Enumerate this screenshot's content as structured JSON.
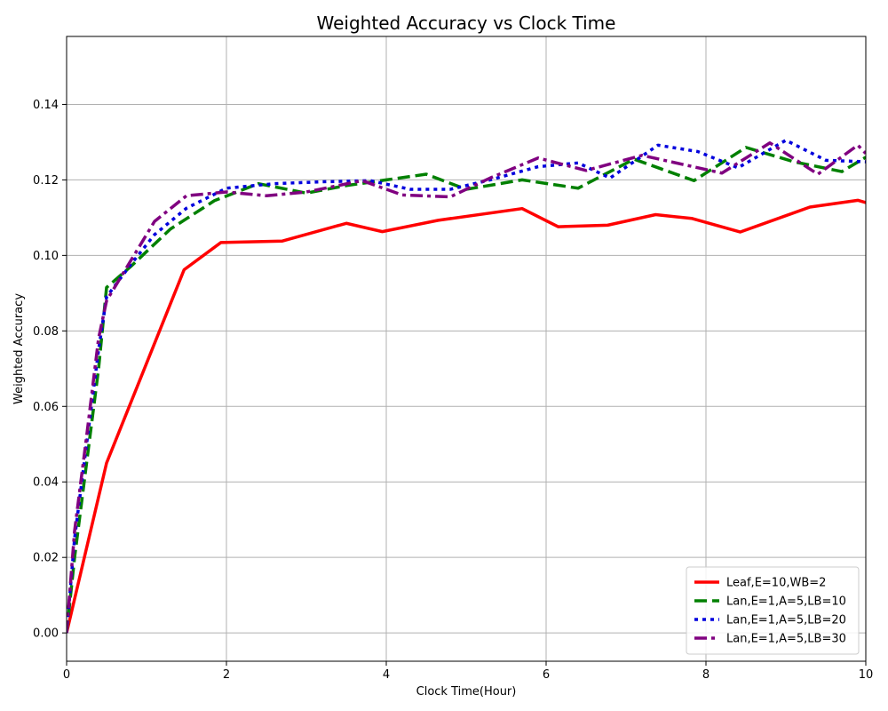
{
  "chart_data": {
    "type": "line",
    "title": "Weighted Accuracy vs Clock Time",
    "xlabel": "Clock Time(Hour)",
    "ylabel": "Weighted Accuracy",
    "xlim": [
      0,
      10
    ],
    "ylim": [
      -0.0075,
      0.158
    ],
    "xticks": [
      0,
      2,
      4,
      6,
      8,
      10
    ],
    "yticks": [
      0.0,
      0.02,
      0.04,
      0.06,
      0.08,
      0.1,
      0.12,
      0.14
    ],
    "xtick_labels": [
      "0",
      "2",
      "4",
      "6",
      "8",
      "10"
    ],
    "ytick_labels": [
      "0.00",
      "0.02",
      "0.04",
      "0.06",
      "0.08",
      "0.10",
      "0.12",
      "0.14"
    ],
    "grid": true,
    "legend_position": "lower-right",
    "series": [
      {
        "name": "Leaf,E=10,WB=2",
        "color": "#ff0000",
        "dash": "solid",
        "x": [
          0,
          0.5,
          1.47,
          1.93,
          2.7,
          3.5,
          3.95,
          4.65,
          5.7,
          6.15,
          6.77,
          7.37,
          7.82,
          8.43,
          9.3,
          9.9,
          10.0
        ],
        "y": [
          0.0,
          0.045,
          0.0962,
          0.1034,
          0.1038,
          0.1085,
          0.1063,
          0.1093,
          0.1124,
          0.1076,
          0.108,
          0.1108,
          0.1098,
          0.1062,
          0.1128,
          0.1146,
          0.114
        ]
      },
      {
        "name": "Lan,E=1,A=5,LB=10",
        "color": "#008000",
        "dash": "dashed",
        "x": [
          0,
          0.1,
          0.25,
          0.4,
          0.5,
          0.8,
          1.3,
          1.85,
          2.4,
          3.0,
          3.5,
          4.0,
          4.5,
          5.0,
          5.7,
          6.4,
          7.1,
          7.85,
          8.5,
          9.1,
          9.7,
          10.0
        ],
        "y": [
          0.0,
          0.02,
          0.045,
          0.07,
          0.0915,
          0.097,
          0.107,
          0.1145,
          0.119,
          0.1165,
          0.1185,
          0.12,
          0.1215,
          0.1175,
          0.12,
          0.1178,
          0.1255,
          0.1198,
          0.1286,
          0.1248,
          0.1222,
          0.126
        ]
      },
      {
        "name": "Lan,E=1,A=5,LB=20",
        "color": "#0000dd",
        "dash": "dotted",
        "x": [
          0,
          0.1,
          0.25,
          0.4,
          0.5,
          0.8,
          1.1,
          1.5,
          2.0,
          2.6,
          3.2,
          3.8,
          4.3,
          4.8,
          5.3,
          5.9,
          6.4,
          6.8,
          7.4,
          7.9,
          8.4,
          9.0,
          9.5,
          10.0
        ],
        "y": [
          0.0,
          0.025,
          0.05,
          0.075,
          0.089,
          0.0975,
          0.1055,
          0.1125,
          0.1178,
          0.119,
          0.1195,
          0.1198,
          0.1175,
          0.1175,
          0.12,
          0.1235,
          0.1245,
          0.1205,
          0.1292,
          0.1275,
          0.1232,
          0.1305,
          0.1252,
          0.1248
        ]
      },
      {
        "name": "Lan,E=1,A=5,LB=30",
        "color": "#800080",
        "dash": "dashdot",
        "x": [
          0,
          0.1,
          0.25,
          0.4,
          0.5,
          0.8,
          1.1,
          1.5,
          2.0,
          2.5,
          3.0,
          3.7,
          4.2,
          4.8,
          5.3,
          5.9,
          6.5,
          7.2,
          8.2,
          8.8,
          9.4,
          9.9,
          10.0
        ],
        "y": [
          0.0,
          0.027,
          0.052,
          0.078,
          0.088,
          0.0985,
          0.109,
          0.1158,
          0.1168,
          0.1158,
          0.1168,
          0.1198,
          0.116,
          0.1155,
          0.1205,
          0.1258,
          0.1225,
          0.1265,
          0.1218,
          0.1298,
          0.1215,
          0.1292,
          0.127
        ]
      }
    ]
  }
}
